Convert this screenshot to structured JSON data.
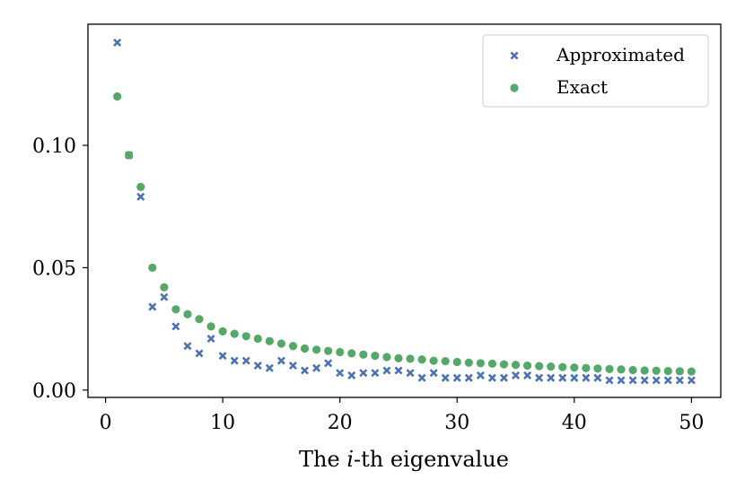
{
  "chart_data": {
    "type": "scatter",
    "title": "",
    "xlabel_prefix": "The ",
    "xlabel_var": "i",
    "xlabel_suffix": "-th eigenvalue",
    "ylabel": "",
    "xlim": [
      -1.5,
      52.5
    ],
    "ylim": [
      -0.003,
      0.1495
    ],
    "xticks": [
      0,
      10,
      20,
      30,
      40,
      50
    ],
    "xtick_labels": [
      "0",
      "10",
      "20",
      "30",
      "40",
      "50"
    ],
    "yticks": [
      0.0,
      0.05,
      0.1
    ],
    "ytick_labels": [
      "0.00",
      "0.05",
      "0.10"
    ],
    "grid": false,
    "legend_position": "top-right",
    "series": [
      {
        "name": "Approximated",
        "marker": "x",
        "color": "#4c72b0",
        "x": [
          1,
          2,
          3,
          4,
          5,
          6,
          7,
          8,
          9,
          10,
          11,
          12,
          13,
          14,
          15,
          16,
          17,
          18,
          19,
          20,
          21,
          22,
          23,
          24,
          25,
          26,
          27,
          28,
          29,
          30,
          31,
          32,
          33,
          34,
          35,
          36,
          37,
          38,
          39,
          40,
          41,
          42,
          43,
          44,
          45,
          46,
          47,
          48,
          49,
          50
        ],
        "values": [
          0.142,
          0.096,
          0.079,
          0.034,
          0.038,
          0.026,
          0.018,
          0.015,
          0.021,
          0.014,
          0.012,
          0.012,
          0.01,
          0.009,
          0.012,
          0.01,
          0.008,
          0.009,
          0.011,
          0.007,
          0.006,
          0.007,
          0.007,
          0.008,
          0.008,
          0.007,
          0.005,
          0.007,
          0.005,
          0.005,
          0.005,
          0.006,
          0.005,
          0.005,
          0.006,
          0.006,
          0.005,
          0.005,
          0.005,
          0.005,
          0.005,
          0.005,
          0.004,
          0.004,
          0.004,
          0.004,
          0.004,
          0.004,
          0.004,
          0.004
        ]
      },
      {
        "name": "Exact",
        "marker": "o",
        "color": "#55a868",
        "x": [
          1,
          2,
          3,
          4,
          5,
          6,
          7,
          8,
          9,
          10,
          11,
          12,
          13,
          14,
          15,
          16,
          17,
          18,
          19,
          20,
          21,
          22,
          23,
          24,
          25,
          26,
          27,
          28,
          29,
          30,
          31,
          32,
          33,
          34,
          35,
          36,
          37,
          38,
          39,
          40,
          41,
          42,
          43,
          44,
          45,
          46,
          47,
          48,
          49,
          50
        ],
        "values": [
          0.12,
          0.096,
          0.083,
          0.05,
          0.042,
          0.033,
          0.031,
          0.029,
          0.026,
          0.024,
          0.023,
          0.022,
          0.021,
          0.02,
          0.019,
          0.018,
          0.017,
          0.0165,
          0.016,
          0.0155,
          0.015,
          0.0145,
          0.014,
          0.0135,
          0.013,
          0.0128,
          0.0125,
          0.012,
          0.0118,
          0.0115,
          0.0112,
          0.011,
          0.0108,
          0.0105,
          0.0103,
          0.01,
          0.0098,
          0.0096,
          0.0094,
          0.0092,
          0.009,
          0.0088,
          0.0086,
          0.0084,
          0.0082,
          0.008,
          0.0079,
          0.0078,
          0.0077,
          0.0076
        ]
      }
    ]
  }
}
